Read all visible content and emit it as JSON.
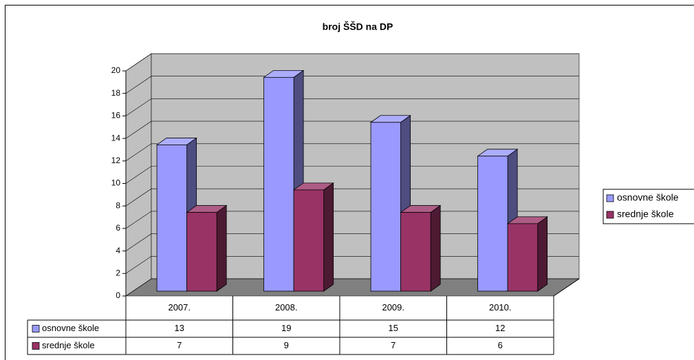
{
  "chart_data": {
    "type": "bar3d",
    "title": "broj ŠŠD na DP",
    "categories": [
      "2007.",
      "2008.",
      "2009.",
      "2010."
    ],
    "series": [
      {
        "name": "osnovne škole",
        "color": "#9999ff",
        "values": [
          13,
          19,
          15,
          12
        ]
      },
      {
        "name": "srednje škole",
        "color": "#993366",
        "values": [
          7,
          9,
          7,
          6
        ]
      }
    ],
    "ylim": [
      0,
      20
    ],
    "yticks": [
      0,
      2,
      4,
      6,
      8,
      10,
      12,
      14,
      16,
      18,
      20
    ],
    "grid": true,
    "legend": "right",
    "data_table": true
  }
}
